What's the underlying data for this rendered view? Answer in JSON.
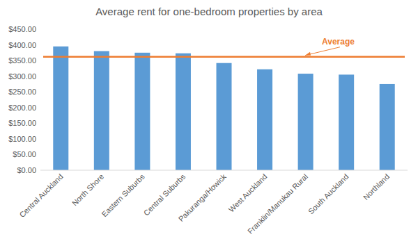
{
  "chart_data": {
    "type": "bar",
    "title": "Average rent for one-bedroom properties by area",
    "categories": [
      "Central Auckland",
      "North Shore",
      "Eastern Suburbs",
      "Central Suburbs",
      "Pakuranga/Howick",
      "West Auckland",
      "Franklin/Manukau Rural",
      "South Auckland",
      "Northland"
    ],
    "values": [
      395,
      380,
      375,
      373,
      342,
      322,
      308,
      305,
      275
    ],
    "color": "#5b9bd5",
    "ylim": [
      0,
      450
    ],
    "yticks": [
      {
        "value": 0,
        "label": "$0.00"
      },
      {
        "value": 50,
        "label": "$50.00"
      },
      {
        "value": 100,
        "label": "$100.00"
      },
      {
        "value": 150,
        "label": "$150.00"
      },
      {
        "value": 200,
        "label": "$200.00"
      },
      {
        "value": 250,
        "label": "$250.00"
      },
      {
        "value": 300,
        "label": "$300.00"
      },
      {
        "value": 350,
        "label": "$350.00"
      },
      {
        "value": 400,
        "label": "$400.00"
      },
      {
        "value": 450,
        "label": "$450.00"
      }
    ],
    "grid": false,
    "reference_line": {
      "value": 362,
      "label": "Average",
      "color": "#ed7d31"
    }
  }
}
